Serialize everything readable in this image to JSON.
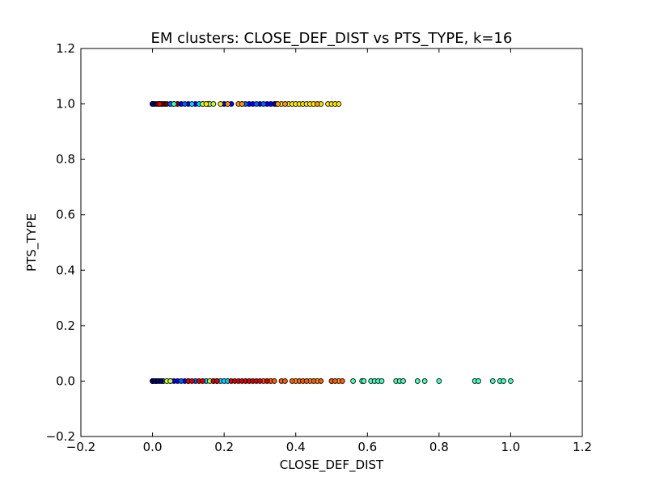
{
  "chart_data": {
    "type": "scatter",
    "title": "EM clusters: CLOSE_DEF_DIST vs PTS_TYPE, k=16",
    "xlabel": "CLOSE_DEF_DIST",
    "ylabel": "PTS_TYPE",
    "xlim": [
      -0.2,
      1.2
    ],
    "ylim": [
      -0.2,
      1.2
    ],
    "xticks": [
      "−0.2",
      "0.0",
      "0.2",
      "0.4",
      "0.6",
      "0.8",
      "1.0",
      "1.2"
    ],
    "yticks": [
      "−0.2",
      "0.0",
      "0.2",
      "0.4",
      "0.6",
      "0.8",
      "1.0",
      "1.2"
    ],
    "grid": false,
    "legend": "none",
    "marker_edge_color": "#000000",
    "series": [
      {
        "color": "#800000",
        "points": [
          [
            0.0,
            1
          ],
          [
            0.005,
            1
          ],
          [
            0.01,
            1
          ],
          [
            0.015,
            1
          ],
          [
            0.02,
            1
          ],
          [
            0.025,
            1
          ],
          [
            0.03,
            1
          ],
          [
            0.035,
            1
          ],
          [
            0.04,
            1
          ],
          [
            0.05,
            1
          ],
          [
            0.06,
            1
          ],
          [
            0.07,
            1
          ]
        ]
      },
      {
        "color": "#0000ff",
        "points": [
          [
            0.0,
            1
          ],
          [
            0.08,
            1
          ],
          [
            0.1,
            1
          ],
          [
            0.12,
            1
          ],
          [
            0.2,
            1
          ],
          [
            0.22,
            1
          ],
          [
            0.25,
            1
          ],
          [
            0.27,
            1
          ],
          [
            0.28,
            1
          ],
          [
            0.3,
            1
          ],
          [
            0.32,
            1
          ],
          [
            0.33,
            1
          ],
          [
            0.34,
            1
          ],
          [
            0.345,
            1
          ],
          [
            0.0,
            0
          ],
          [
            0.01,
            0
          ],
          [
            0.02,
            0
          ],
          [
            0.05,
            0
          ],
          [
            0.06,
            0
          ],
          [
            0.07,
            0
          ],
          [
            0.09,
            0
          ]
        ]
      },
      {
        "color": "#0060ff",
        "points": [
          [
            0.05,
            1
          ],
          [
            0.09,
            1
          ],
          [
            0.14,
            1
          ],
          [
            0.26,
            1
          ],
          [
            0.29,
            1
          ],
          [
            0.31,
            1
          ],
          [
            0.0,
            0
          ],
          [
            0.03,
            0
          ],
          [
            0.08,
            0
          ],
          [
            0.1,
            0
          ],
          [
            0.12,
            0
          ]
        ]
      },
      {
        "color": "#00d0ff",
        "points": [
          [
            0.11,
            1
          ],
          [
            0.13,
            1
          ],
          [
            0.155,
            1
          ],
          [
            0.15,
            0
          ],
          [
            0.17,
            0
          ],
          [
            0.18,
            0
          ],
          [
            0.19,
            0
          ],
          [
            0.2,
            0
          ],
          [
            0.21,
            0
          ]
        ]
      },
      {
        "color": "#40ffb8",
        "points": [
          [
            0.06,
            1
          ],
          [
            0.56,
            0
          ],
          [
            0.585,
            0
          ],
          [
            0.59,
            0
          ],
          [
            0.61,
            0
          ],
          [
            0.62,
            0
          ],
          [
            0.63,
            0
          ],
          [
            0.64,
            0
          ],
          [
            0.68,
            0
          ],
          [
            0.69,
            0
          ],
          [
            0.7,
            0
          ],
          [
            0.74,
            0
          ],
          [
            0.76,
            0
          ],
          [
            0.8,
            0
          ],
          [
            0.9,
            0
          ],
          [
            0.91,
            0
          ],
          [
            0.95,
            0
          ],
          [
            0.97,
            0
          ],
          [
            0.98,
            0
          ],
          [
            1.0,
            0
          ]
        ]
      },
      {
        "color": "#b8ff40",
        "points": [
          [
            0.14,
            1
          ],
          [
            0.16,
            1
          ],
          [
            0.17,
            1
          ],
          [
            0.03,
            0
          ],
          [
            0.04,
            0
          ],
          [
            0.05,
            0
          ],
          [
            0.16,
            0
          ]
        ]
      },
      {
        "color": "#ffe600",
        "points": [
          [
            0.15,
            1
          ],
          [
            0.19,
            1
          ],
          [
            0.36,
            1
          ],
          [
            0.38,
            1
          ],
          [
            0.39,
            1
          ],
          [
            0.4,
            1
          ],
          [
            0.41,
            1
          ],
          [
            0.42,
            1
          ],
          [
            0.43,
            1
          ],
          [
            0.44,
            1
          ],
          [
            0.45,
            1
          ],
          [
            0.47,
            1
          ],
          [
            0.49,
            1
          ],
          [
            0.5,
            1
          ],
          [
            0.51,
            1
          ],
          [
            0.52,
            1
          ]
        ]
      },
      {
        "color": "#ff9400",
        "points": [
          [
            0.21,
            1
          ],
          [
            0.24,
            1
          ],
          [
            0.25,
            1
          ],
          [
            0.35,
            1
          ],
          [
            0.37,
            1
          ],
          [
            0.46,
            1
          ],
          [
            0.4,
            0
          ],
          [
            0.44,
            0
          ],
          [
            0.46,
            0
          ],
          [
            0.5,
            0
          ],
          [
            0.52,
            0
          ]
        ]
      },
      {
        "color": "#ff5a00",
        "points": [
          [
            0.31,
            0
          ],
          [
            0.33,
            0
          ],
          [
            0.34,
            0
          ],
          [
            0.36,
            0
          ],
          [
            0.37,
            0
          ],
          [
            0.39,
            0
          ],
          [
            0.41,
            0
          ],
          [
            0.42,
            0
          ],
          [
            0.43,
            0
          ],
          [
            0.45,
            0
          ],
          [
            0.47,
            0
          ],
          [
            0.5,
            0
          ],
          [
            0.51,
            0
          ],
          [
            0.53,
            0
          ]
        ]
      },
      {
        "color": "#e00000",
        "points": [
          [
            0.02,
            1
          ],
          [
            0.01,
            0
          ],
          [
            0.1,
            0
          ],
          [
            0.11,
            0
          ],
          [
            0.13,
            0
          ],
          [
            0.14,
            0
          ],
          [
            0.17,
            0
          ],
          [
            0.18,
            0
          ],
          [
            0.22,
            0
          ],
          [
            0.23,
            0
          ],
          [
            0.24,
            0
          ],
          [
            0.25,
            0
          ],
          [
            0.26,
            0
          ],
          [
            0.27,
            0
          ],
          [
            0.28,
            0
          ],
          [
            0.29,
            0
          ],
          [
            0.3,
            0
          ],
          [
            0.32,
            0
          ]
        ]
      },
      {
        "color": "#000080",
        "points": [
          [
            0.0,
            1
          ],
          [
            0.0,
            0
          ],
          [
            0.005,
            0
          ],
          [
            0.015,
            0
          ],
          [
            0.025,
            0
          ]
        ]
      }
    ]
  }
}
